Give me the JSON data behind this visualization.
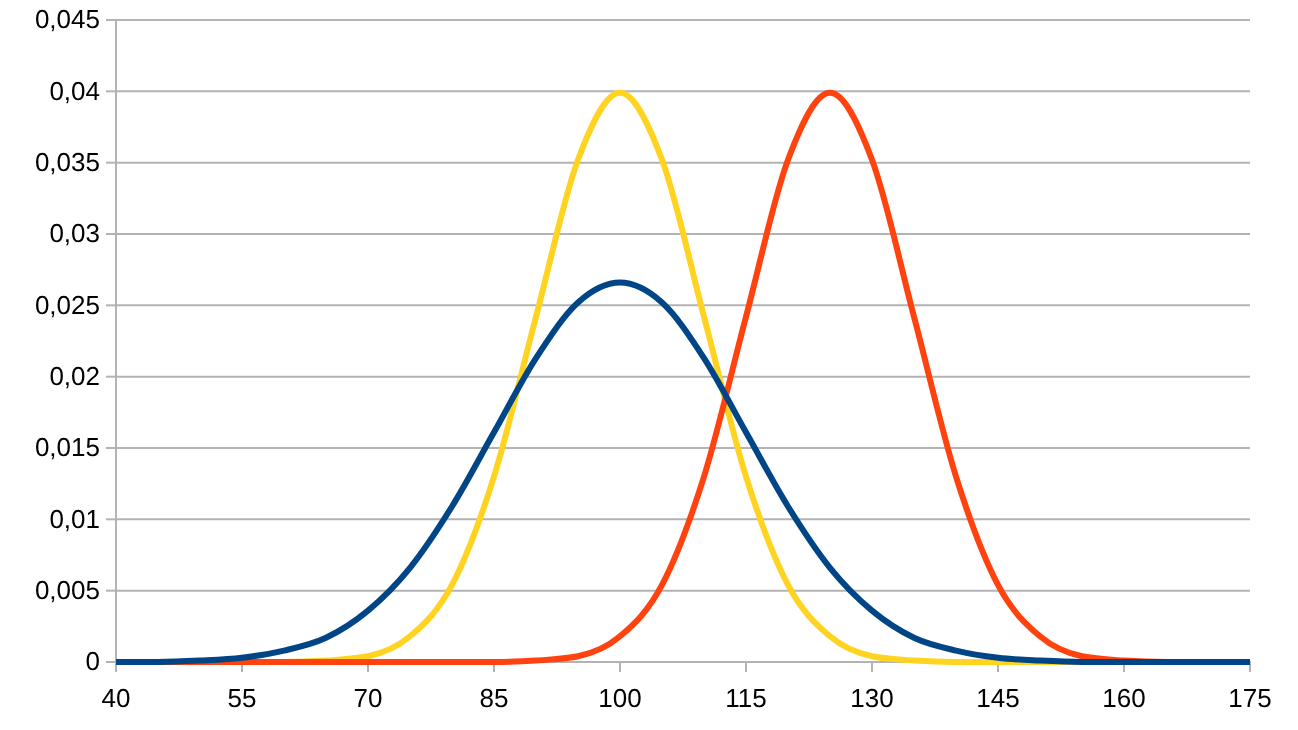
{
  "chart_data": {
    "type": "line",
    "x": [
      40,
      45,
      50,
      55,
      60,
      65,
      70,
      75,
      80,
      85,
      90,
      95,
      100,
      105,
      110,
      115,
      120,
      125,
      130,
      135,
      140,
      145,
      150,
      155,
      160,
      165,
      170,
      175
    ],
    "series": [
      {
        "color": "#ffd320",
        "values": [
          null,
          null,
          null,
          0,
          0,
          0.0001,
          0.0004,
          0.0018,
          0.0054,
          0.013,
          0.0242,
          0.0352,
          0.0399,
          0.0352,
          0.0242,
          0.013,
          0.0054,
          0.0018,
          0.0004,
          0.0001,
          0,
          0,
          0,
          0,
          0,
          null,
          null,
          null
        ]
      },
      {
        "color": "#ff420e",
        "values": [
          0,
          0,
          0,
          0,
          0,
          0,
          0,
          0,
          0,
          0,
          0.0001,
          0.0004,
          0.0018,
          0.0054,
          0.013,
          0.0242,
          0.0352,
          0.0399,
          0.0352,
          0.0242,
          0.013,
          0.0054,
          0.0018,
          0.0004,
          0.0001,
          0,
          0,
          0
        ]
      },
      {
        "color": "#004586",
        "values": [
          0,
          0,
          0.0001,
          0.0003,
          0.0008,
          0.0017,
          0.0036,
          0.0066,
          0.0109,
          0.0161,
          0.0213,
          0.0252,
          0.0266,
          0.0252,
          0.0213,
          0.0161,
          0.0109,
          0.0066,
          0.0036,
          0.0017,
          0.0008,
          0.0003,
          0.0001,
          0,
          0,
          0,
          0,
          0
        ]
      }
    ],
    "xlim": [
      40,
      175
    ],
    "xticks": [
      40,
      55,
      70,
      85,
      100,
      115,
      130,
      145,
      160,
      175
    ],
    "ylim": [
      0,
      0.045
    ],
    "yticks": [
      0,
      {
        "value": 0.005,
        "label": "0,005"
      },
      {
        "value": 0.01,
        "label": "0,01"
      },
      {
        "value": 0.015,
        "label": "0,015"
      },
      {
        "value": 0.02,
        "label": "0,02"
      },
      {
        "value": 0.025,
        "label": "0,025"
      },
      {
        "value": 0.03,
        "label": "0,03"
      },
      {
        "value": 0.035,
        "label": "0,035"
      },
      {
        "value": 0.04,
        "label": "0,04"
      },
      {
        "value": 0.045,
        "label": "0,045"
      }
    ],
    "grid": "y",
    "marker": "none",
    "line_style": "solid"
  }
}
